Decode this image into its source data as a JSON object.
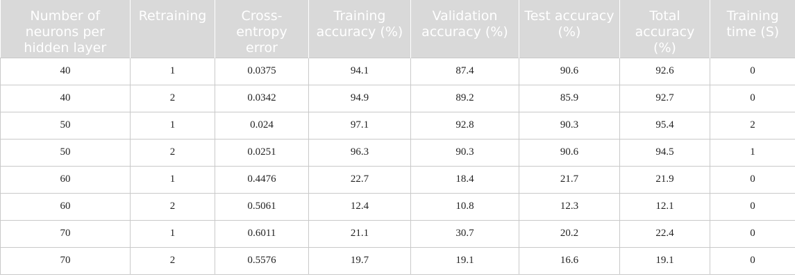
{
  "table": {
    "headers": [
      "Number of neurons per hidden layer",
      "Retraining",
      "Cross-entropy error",
      "Training accuracy (%)",
      "Validation accuracy (%)",
      "Test accuracy (%)",
      "Total accuracy (%)",
      "Training time (S)"
    ],
    "rows": [
      [
        "40",
        "1",
        "0.0375",
        "94.1",
        "87.4",
        "90.6",
        "92.6",
        "0"
      ],
      [
        "40",
        "2",
        "0.0342",
        "94.9",
        "89.2",
        "85.9",
        "92.7",
        "0"
      ],
      [
        "50",
        "1",
        "0.024",
        "97.1",
        "92.8",
        "90.3",
        "95.4",
        "2"
      ],
      [
        "50",
        "2",
        "0.0251",
        "96.3",
        "90.3",
        "90.6",
        "94.5",
        "1"
      ],
      [
        "60",
        "1",
        "0.4476",
        "22.7",
        "18.4",
        "21.7",
        "21.9",
        "0"
      ],
      [
        "60",
        "2",
        "0.5061",
        "12.4",
        "10.8",
        "12.3",
        "12.1",
        "0"
      ],
      [
        "70",
        "1",
        "0.6011",
        "21.1",
        "30.7",
        "20.2",
        "22.4",
        "0"
      ],
      [
        "70",
        "2",
        "0.5576",
        "19.7",
        "19.1",
        "16.6",
        "19.1",
        "0"
      ]
    ]
  }
}
